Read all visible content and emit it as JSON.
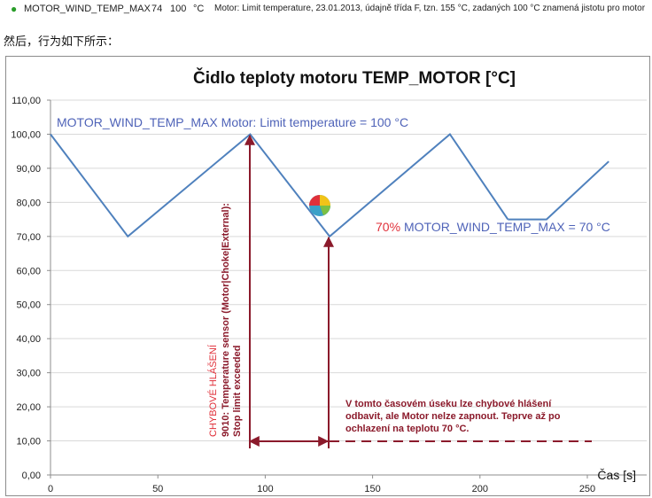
{
  "parameter_row": {
    "icon": "green-dot-icon",
    "name": "MOTOR_WIND_TEMP_MAX",
    "id": "74",
    "value": "100",
    "unit": "°C",
    "description": "Motor: Limit temperature, 23.01.2013, údajně třída F, tzn. 155 °C, zadaných 100 °C znamená jistotu pro motor"
  },
  "intro_text": "然后，行为如下所示：",
  "colors": {
    "series": "#4f81bd",
    "annotation": "#8b1a2b",
    "highlight_red": "#e0303a",
    "axis": "#8c8c8c",
    "grid": "#d9d9d9"
  },
  "chart_data": {
    "type": "line",
    "title": "Čidlo teploty motoru TEMP_MOTOR [°C]",
    "xlabel": "Čas [s]",
    "ylabel": "",
    "xlim": [
      0,
      260
    ],
    "ylim": [
      0,
      110
    ],
    "x_ticks": [
      "0",
      "50",
      "100",
      "150",
      "200",
      "250"
    ],
    "y_ticks": [
      "0,00",
      "10,00",
      "20,00",
      "30,00",
      "40,00",
      "50,00",
      "60,00",
      "70,00",
      "80,00",
      "90,00",
      "100,00",
      "110,00"
    ],
    "grid": "horizontal",
    "series": [
      {
        "values_x": [
          0,
          36,
          93,
          130,
          186,
          213,
          231,
          260
        ],
        "values_y": [
          100,
          70,
          100,
          70,
          100,
          75,
          75,
          92
        ],
        "gap_after_index": 4
      }
    ],
    "annotations": {
      "max_line": "MOTOR_WIND_TEMP_MAX Motor: Limit temperature = 100 °C",
      "pct_value": "70%",
      "pct_line": "MOTOR_WIND_TEMP_MAX = 70 °C",
      "error_title": "CHYBOVÉ HLÁŠENÍ",
      "error_line1": "9010: Temperature sensor (Motor|Choke|External):",
      "error_line2": "Stop limit exceeded",
      "note_line1": "V tomto časovém úseku lze chybové hlášení",
      "note_line2": "odbavit, ale Motor nelze zapnout. Teprve až po",
      "note_line3": "ochlazení na teplotu 70 °C."
    }
  }
}
